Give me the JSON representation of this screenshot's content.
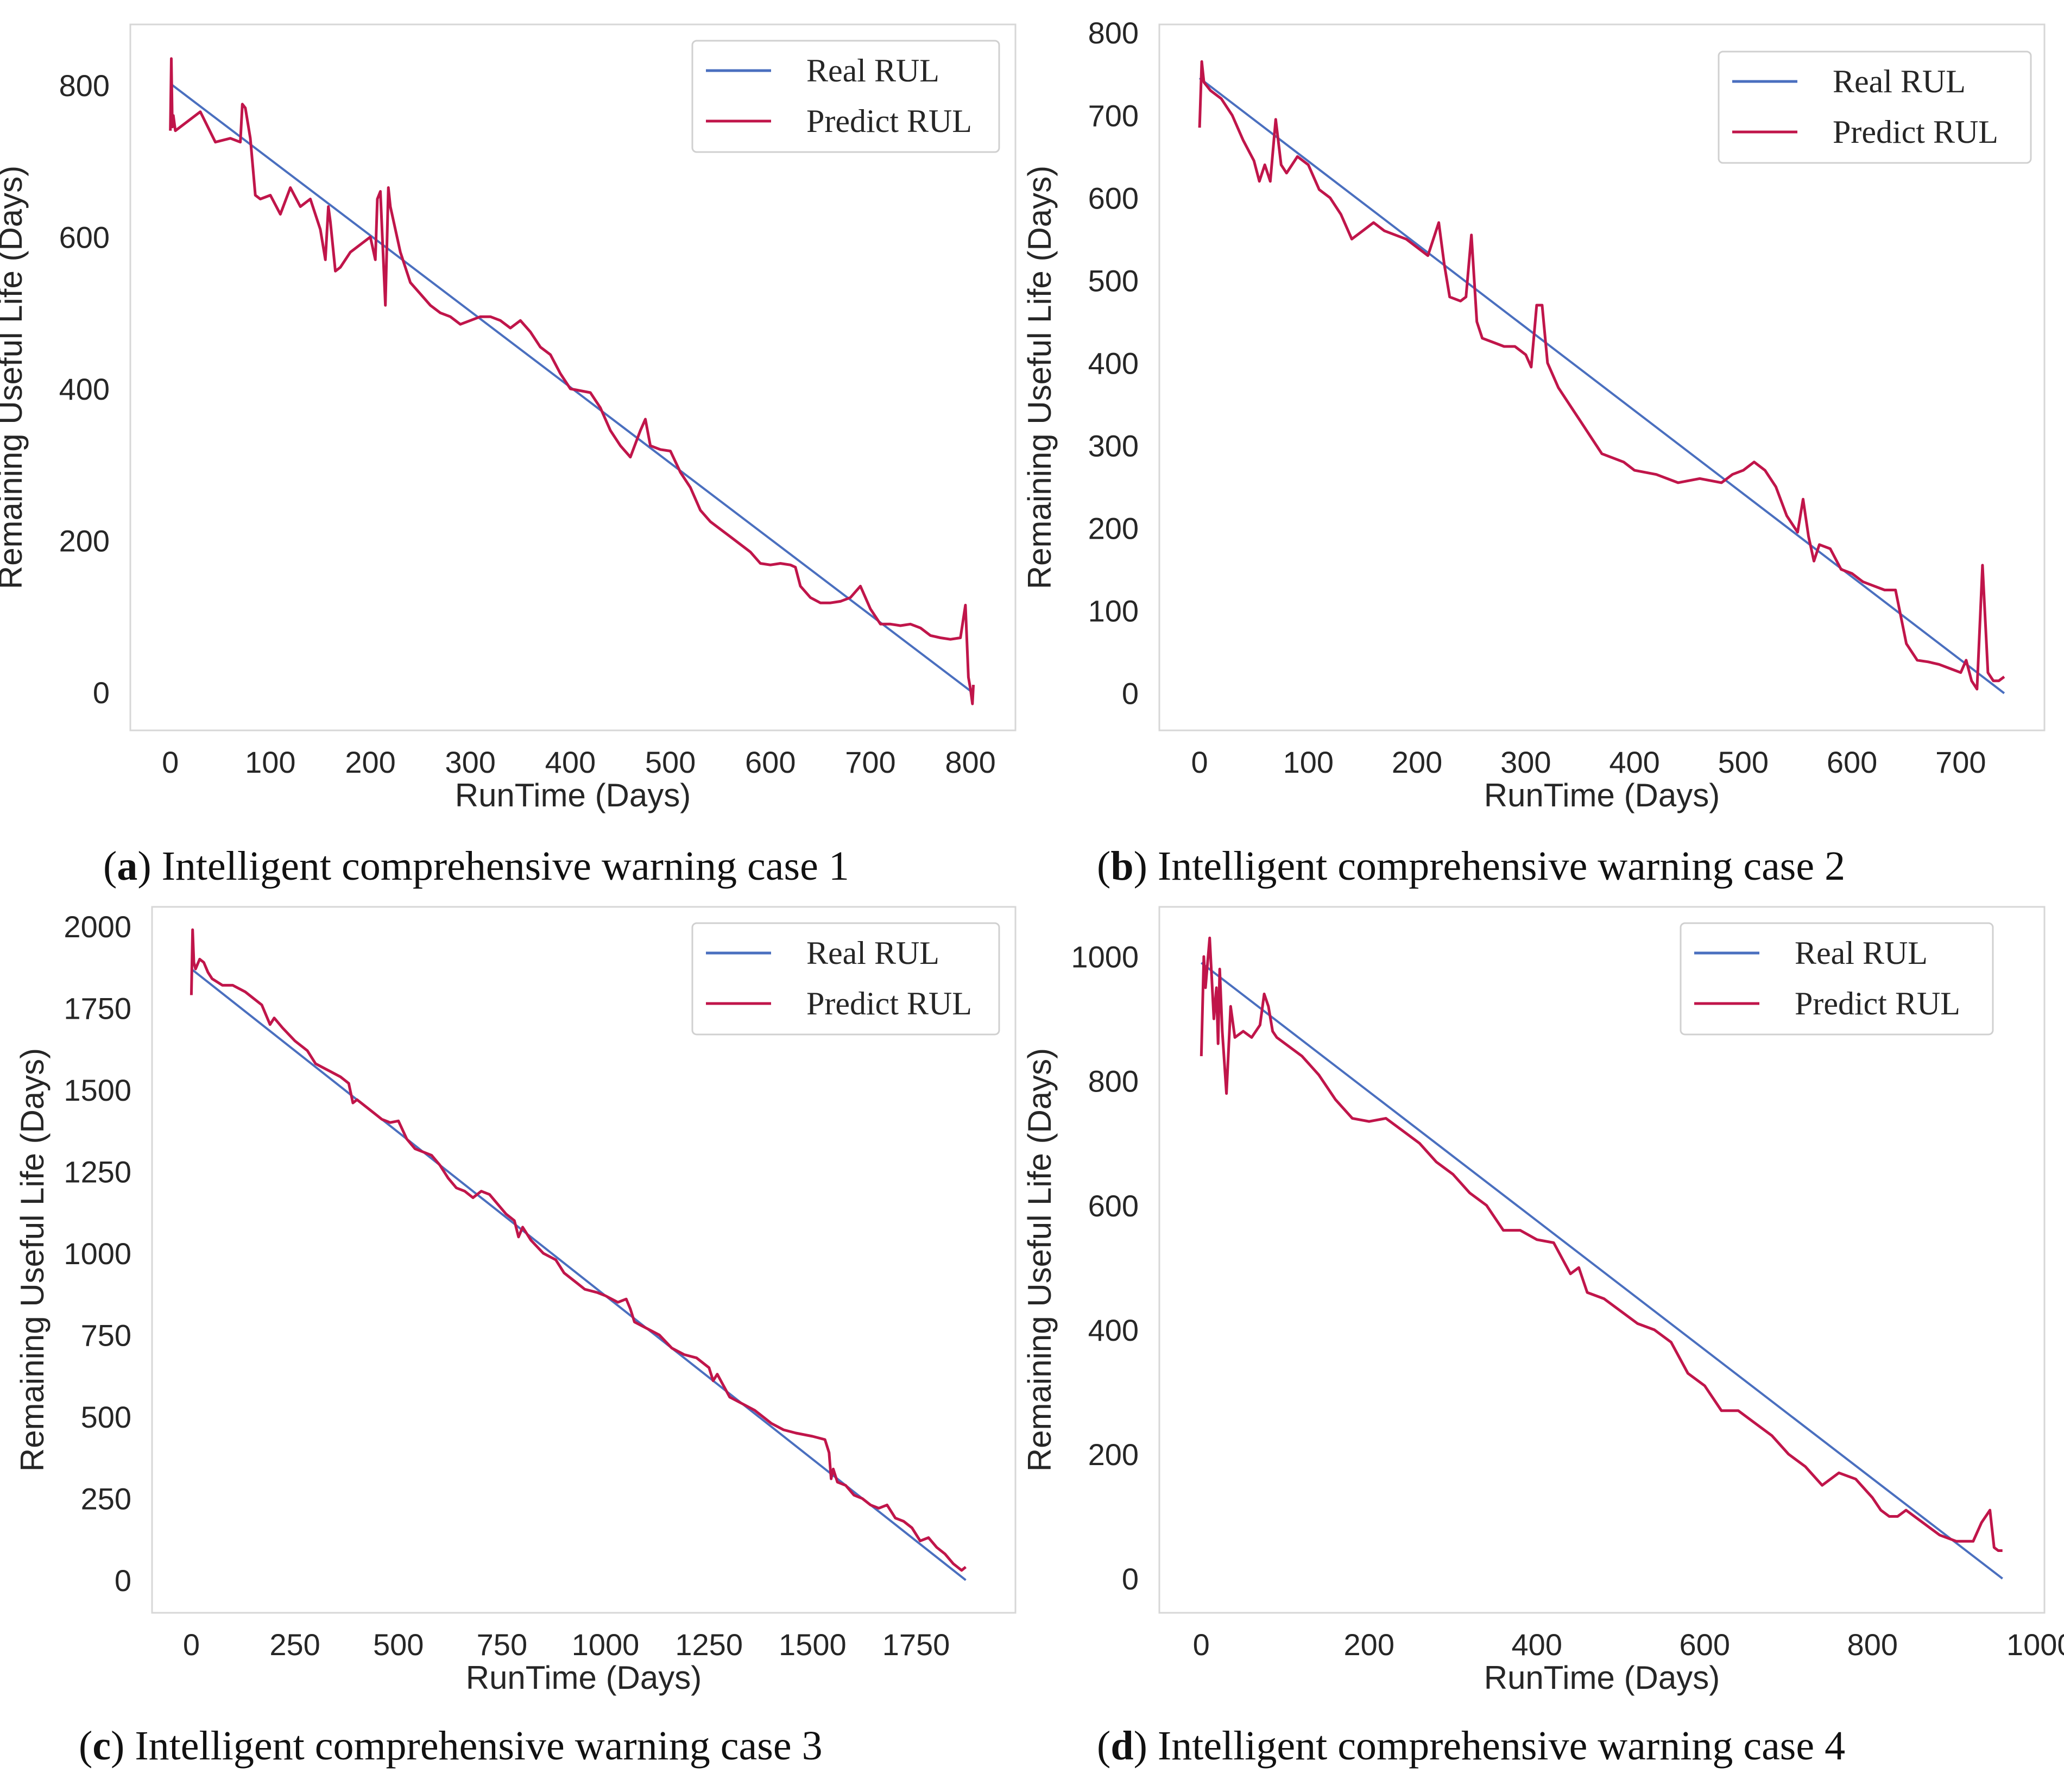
{
  "colors": {
    "real": "#4a6fbf",
    "predict": "#c0154a"
  },
  "legend": {
    "real_label": "Real RUL",
    "predict_label": "Predict RUL"
  },
  "chart_data": [
    {
      "type": "line",
      "panel": "a",
      "caption_letter": "a",
      "caption_text": ") Intelligent comprehensive warning case 1",
      "xlabel": "RunTime (Days)",
      "ylabel": "Remaining Useful Life (Days)",
      "xlim": [
        -40,
        845
      ],
      "ylim": [
        -50,
        880
      ],
      "xticks": [
        0,
        100,
        200,
        300,
        400,
        500,
        600,
        700,
        800
      ],
      "yticks": [
        0,
        200,
        400,
        600,
        800
      ],
      "grid": false,
      "legend_position": "top-right",
      "series": [
        {
          "name": "Real RUL",
          "x": [
            0,
            802
          ],
          "y": [
            802,
            0
          ]
        },
        {
          "name": "Predict RUL",
          "x": [
            0,
            1,
            2,
            3,
            5,
            10,
            20,
            30,
            45,
            60,
            70,
            72,
            75,
            80,
            85,
            90,
            100,
            110,
            120,
            130,
            140,
            150,
            155,
            158,
            160,
            165,
            170,
            180,
            190,
            200,
            205,
            207,
            210,
            212,
            215,
            218,
            220,
            230,
            240,
            250,
            260,
            270,
            280,
            290,
            300,
            310,
            320,
            330,
            340,
            350,
            360,
            370,
            380,
            390,
            400,
            420,
            430,
            440,
            450,
            460,
            470,
            475,
            480,
            490,
            500,
            510,
            520,
            530,
            540,
            550,
            560,
            570,
            580,
            590,
            600,
            610,
            620,
            625,
            630,
            640,
            650,
            660,
            670,
            680,
            690,
            700,
            710,
            720,
            730,
            740,
            750,
            760,
            770,
            780,
            790,
            795,
            798,
            800,
            802,
            803
          ],
          "y": [
            740,
            835,
            745,
            760,
            740,
            745,
            755,
            765,
            725,
            730,
            725,
            775,
            770,
            730,
            655,
            650,
            655,
            630,
            665,
            640,
            650,
            610,
            570,
            640,
            620,
            555,
            560,
            580,
            590,
            600,
            570,
            650,
            660,
            600,
            510,
            665,
            640,
            580,
            540,
            525,
            510,
            500,
            495,
            485,
            490,
            495,
            495,
            490,
            480,
            490,
            475,
            455,
            445,
            420,
            400,
            395,
            375,
            345,
            325,
            310,
            345,
            360,
            325,
            320,
            318,
            290,
            270,
            240,
            225,
            215,
            205,
            195,
            185,
            170,
            168,
            170,
            168,
            165,
            140,
            125,
            118,
            118,
            120,
            125,
            140,
            110,
            90,
            90,
            88,
            90,
            85,
            75,
            72,
            70,
            72,
            115,
            20,
            5,
            -15,
            10
          ]
        }
      ]
    },
    {
      "type": "line",
      "panel": "b",
      "caption_letter": "b",
      "caption_text": ") Intelligent comprehensive warning case 2",
      "xlabel": "RunTime (Days)",
      "ylabel": "Remaining Useful Life (Days)",
      "xlim": [
        -37,
        777
      ],
      "ylim": [
        -45,
        810
      ],
      "xticks": [
        0,
        100,
        200,
        300,
        400,
        500,
        600,
        700
      ],
      "yticks": [
        0,
        100,
        200,
        300,
        400,
        500,
        600,
        700,
        800
      ],
      "grid": false,
      "legend_position": "top-right",
      "series": [
        {
          "name": "Real RUL",
          "x": [
            0,
            740
          ],
          "y": [
            745,
            0
          ]
        },
        {
          "name": "Predict RUL",
          "x": [
            0,
            2,
            4,
            10,
            20,
            30,
            40,
            50,
            55,
            60,
            65,
            70,
            75,
            80,
            90,
            100,
            110,
            120,
            130,
            140,
            150,
            160,
            170,
            180,
            190,
            200,
            210,
            220,
            225,
            230,
            240,
            245,
            250,
            255,
            260,
            270,
            280,
            290,
            300,
            305,
            310,
            315,
            320,
            330,
            340,
            350,
            360,
            370,
            380,
            390,
            400,
            420,
            440,
            460,
            480,
            490,
            500,
            510,
            520,
            530,
            540,
            550,
            555,
            560,
            565,
            570,
            580,
            590,
            600,
            610,
            620,
            630,
            640,
            650,
            660,
            670,
            680,
            690,
            700,
            705,
            710,
            715,
            720,
            725,
            730,
            735,
            740
          ],
          "y": [
            685,
            765,
            740,
            730,
            720,
            700,
            670,
            645,
            620,
            640,
            620,
            695,
            640,
            630,
            650,
            640,
            610,
            600,
            580,
            550,
            560,
            570,
            560,
            555,
            550,
            540,
            530,
            570,
            520,
            480,
            475,
            480,
            555,
            450,
            430,
            425,
            420,
            420,
            410,
            395,
            470,
            470,
            400,
            370,
            350,
            330,
            310,
            290,
            285,
            280,
            270,
            265,
            255,
            260,
            255,
            265,
            270,
            280,
            270,
            250,
            215,
            195,
            235,
            190,
            160,
            180,
            175,
            150,
            145,
            135,
            130,
            125,
            125,
            60,
            40,
            38,
            35,
            30,
            25,
            40,
            15,
            5,
            155,
            25,
            15,
            15,
            20
          ]
        }
      ]
    },
    {
      "type": "line",
      "panel": "c",
      "caption_letter": "c",
      "caption_text": ") Intelligent comprehensive warning case 3",
      "xlabel": "RunTime (Days)",
      "ylabel": "Remaining Useful Life (Days)",
      "xlim": [
        -95,
        1990
      ],
      "ylim": [
        -100,
        2060
      ],
      "xticks": [
        0,
        250,
        500,
        750,
        1000,
        1250,
        1500,
        1750
      ],
      "yticks": [
        0,
        250,
        500,
        750,
        1000,
        1250,
        1500,
        1750,
        2000
      ],
      "grid": false,
      "legend_position": "top-right",
      "series": [
        {
          "name": "Real RUL",
          "x": [
            0,
            1870
          ],
          "y": [
            1870,
            0
          ]
        },
        {
          "name": "Predict RUL",
          "x": [
            0,
            3,
            6,
            10,
            20,
            30,
            40,
            50,
            75,
            100,
            130,
            150,
            170,
            190,
            200,
            220,
            250,
            280,
            300,
            330,
            360,
            380,
            390,
            400,
            430,
            460,
            480,
            500,
            520,
            540,
            560,
            580,
            600,
            620,
            640,
            660,
            680,
            700,
            720,
            740,
            760,
            780,
            790,
            800,
            820,
            850,
            880,
            900,
            930,
            950,
            980,
            1000,
            1030,
            1050,
            1060,
            1070,
            1100,
            1130,
            1160,
            1190,
            1220,
            1250,
            1260,
            1270,
            1300,
            1330,
            1360,
            1400,
            1430,
            1460,
            1500,
            1530,
            1540,
            1545,
            1550,
            1560,
            1580,
            1600,
            1620,
            1640,
            1660,
            1680,
            1700,
            1720,
            1740,
            1760,
            1780,
            1800,
            1820,
            1840,
            1860,
            1870
          ],
          "y": [
            1790,
            1990,
            1890,
            1870,
            1900,
            1890,
            1860,
            1840,
            1820,
            1820,
            1800,
            1780,
            1760,
            1700,
            1720,
            1690,
            1650,
            1620,
            1580,
            1560,
            1540,
            1520,
            1460,
            1470,
            1440,
            1410,
            1400,
            1405,
            1350,
            1320,
            1310,
            1300,
            1270,
            1230,
            1200,
            1190,
            1170,
            1190,
            1180,
            1150,
            1120,
            1100,
            1050,
            1080,
            1040,
            1000,
            980,
            940,
            910,
            890,
            880,
            870,
            850,
            860,
            830,
            790,
            770,
            750,
            710,
            690,
            680,
            650,
            610,
            630,
            560,
            540,
            520,
            480,
            460,
            450,
            440,
            430,
            390,
            310,
            340,
            300,
            290,
            260,
            250,
            230,
            220,
            230,
            190,
            180,
            160,
            120,
            130,
            100,
            80,
            50,
            30,
            40
          ]
        }
      ]
    },
    {
      "type": "line",
      "panel": "d",
      "caption_letter": "d",
      "caption_text": ") Intelligent comprehensive warning case 4",
      "xlabel": "RunTime (Days)",
      "ylabel": "Remaining Useful Life (Days)",
      "xlim": [
        -50,
        1005
      ],
      "ylim": [
        -55,
        1080
      ],
      "xticks": [
        0,
        200,
        400,
        600,
        800,
        1000
      ],
      "yticks": [
        0,
        200,
        400,
        600,
        800,
        1000
      ],
      "grid": false,
      "legend_position": "top-right",
      "series": [
        {
          "name": "Real RUL",
          "x": [
            0,
            955
          ],
          "y": [
            990,
            0
          ]
        },
        {
          "name": "Predict RUL",
          "x": [
            0,
            3,
            5,
            10,
            15,
            18,
            20,
            22,
            25,
            30,
            35,
            40,
            50,
            60,
            70,
            75,
            80,
            85,
            90,
            100,
            120,
            140,
            160,
            180,
            200,
            220,
            240,
            260,
            280,
            300,
            320,
            340,
            360,
            380,
            400,
            420,
            440,
            450,
            460,
            480,
            500,
            520,
            540,
            560,
            580,
            600,
            620,
            640,
            660,
            680,
            700,
            720,
            740,
            760,
            780,
            800,
            810,
            820,
            830,
            840,
            860,
            880,
            900,
            920,
            930,
            940,
            945,
            950,
            955
          ],
          "y": [
            840,
            1000,
            950,
            1030,
            900,
            950,
            860,
            980,
            880,
            780,
            920,
            870,
            880,
            870,
            890,
            940,
            920,
            880,
            870,
            860,
            840,
            810,
            770,
            740,
            735,
            740,
            720,
            700,
            670,
            650,
            620,
            600,
            560,
            560,
            545,
            540,
            490,
            500,
            460,
            450,
            430,
            410,
            400,
            380,
            330,
            310,
            270,
            270,
            250,
            230,
            200,
            180,
            150,
            170,
            160,
            130,
            110,
            100,
            100,
            110,
            90,
            70,
            60,
            60,
            90,
            110,
            50,
            45,
            45
          ]
        }
      ]
    }
  ]
}
